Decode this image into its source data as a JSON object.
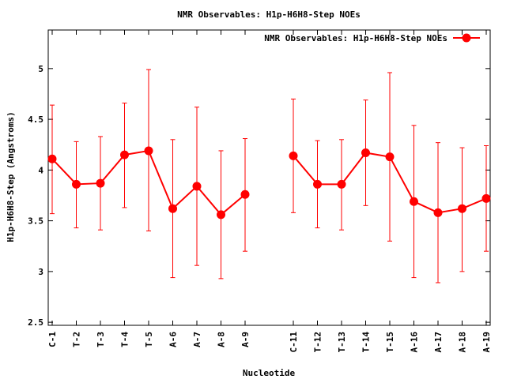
{
  "chart_data": {
    "type": "line",
    "title": "NMR Observables: H1p-H6H8-Step NOEs",
    "xlabel": "Nucleotide",
    "ylabel": "H1p-H6H8-Step (Angstroms)",
    "ylim": [
      2.47,
      5.38
    ],
    "yticks": [
      2.5,
      3,
      3.5,
      4,
      4.5,
      5
    ],
    "ytick_labels": [
      "2.5",
      "3",
      "3.5",
      "4",
      "4.5",
      "5"
    ],
    "grid": false,
    "legend_position": "top-right",
    "color": "#ff0000",
    "series": [
      {
        "name": "NMR Observables: H1p-H6H8-Step NOEs",
        "points": [
          {
            "label": "C-1",
            "y": 4.11,
            "err_low": 3.57,
            "err_high": 4.64
          },
          {
            "label": "T-2",
            "y": 3.86,
            "err_low": 3.43,
            "err_high": 4.28
          },
          {
            "label": "T-3",
            "y": 3.87,
            "err_low": 3.41,
            "err_high": 4.33
          },
          {
            "label": "T-4",
            "y": 4.15,
            "err_low": 3.63,
            "err_high": 4.66
          },
          {
            "label": "T-5",
            "y": 4.19,
            "err_low": 3.4,
            "err_high": 4.99
          },
          {
            "label": "A-6",
            "y": 3.62,
            "err_low": 2.94,
            "err_high": 4.3
          },
          {
            "label": "A-7",
            "y": 3.84,
            "err_low": 3.06,
            "err_high": 4.62
          },
          {
            "label": "A-8",
            "y": 3.56,
            "err_low": 2.93,
            "err_high": 4.19
          },
          {
            "label": "A-9",
            "y": 3.76,
            "err_low": 3.2,
            "err_high": 4.31
          },
          {
            "label": "C-11",
            "y": 4.14,
            "err_low": 3.58,
            "err_high": 4.7
          },
          {
            "label": "T-12",
            "y": 3.86,
            "err_low": 3.43,
            "err_high": 4.29
          },
          {
            "label": "T-13",
            "y": 3.86,
            "err_low": 3.41,
            "err_high": 4.3
          },
          {
            "label": "T-14",
            "y": 4.17,
            "err_low": 3.65,
            "err_high": 4.69
          },
          {
            "label": "T-15",
            "y": 4.13,
            "err_low": 3.3,
            "err_high": 4.96
          },
          {
            "label": "A-16",
            "y": 3.69,
            "err_low": 2.94,
            "err_high": 4.44
          },
          {
            "label": "A-17",
            "y": 3.58,
            "err_low": 2.89,
            "err_high": 4.27
          },
          {
            "label": "A-18",
            "y": 3.62,
            "err_low": 3.0,
            "err_high": 4.22
          },
          {
            "label": "A-19",
            "y": 3.72,
            "err_low": 3.2,
            "err_high": 4.24
          }
        ]
      }
    ]
  }
}
